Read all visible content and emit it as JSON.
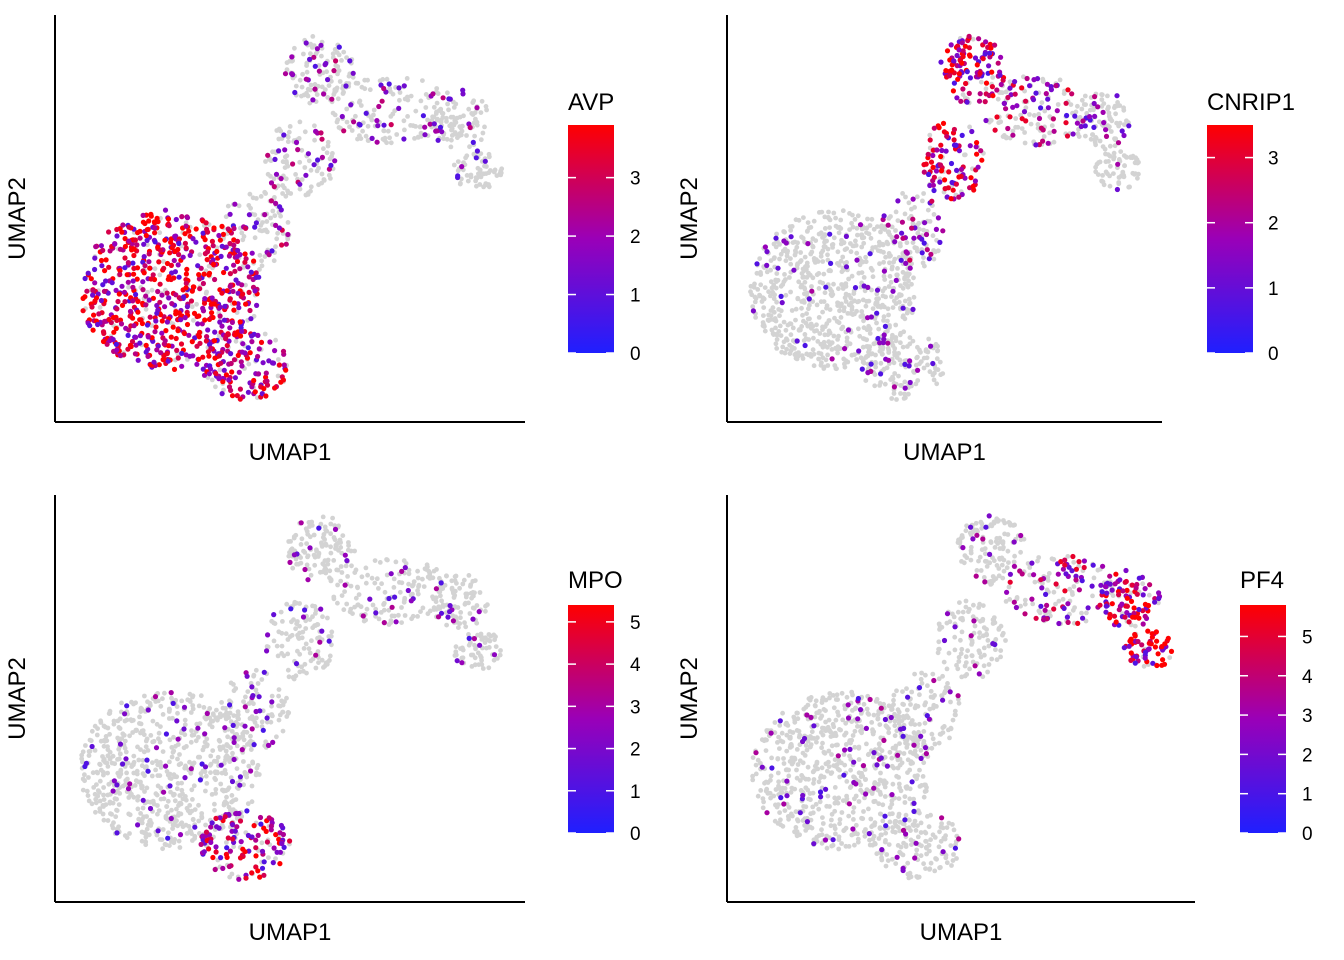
{
  "colors": {
    "background": "#ffffff",
    "axis": "#000000",
    "cell_background": "#d3d3d3",
    "gradient_low": "#1f1fff",
    "gradient_mid": "#9a00b8",
    "gradient_high": "#ff0000"
  },
  "chart_data": [
    {
      "type": "scatter",
      "title": "",
      "xlabel": "UMAP1",
      "ylabel": "UMAP2",
      "legend": {
        "title": "AVP",
        "ticks": [
          0,
          1,
          2,
          3
        ],
        "range": [
          0,
          3.9
        ],
        "placement": "right"
      },
      "high_expression_region": "lower-left lobe",
      "grid": false
    },
    {
      "type": "scatter",
      "title": "",
      "xlabel": "UMAP1",
      "ylabel": "UMAP2",
      "legend": {
        "title": "CNRIP1",
        "ticks": [
          0,
          1,
          2,
          3
        ],
        "range": [
          0,
          3.5
        ],
        "placement": "right"
      },
      "high_expression_region": "upper middle region",
      "grid": false
    },
    {
      "type": "scatter",
      "title": "",
      "xlabel": "UMAP1",
      "ylabel": "UMAP2",
      "legend": {
        "title": "MPO",
        "ticks": [
          0,
          1,
          2,
          3,
          4,
          5
        ],
        "range": [
          0,
          5.4
        ],
        "placement": "right"
      },
      "high_expression_region": "lower tip",
      "grid": false
    },
    {
      "type": "scatter",
      "title": "",
      "xlabel": "UMAP1",
      "ylabel": "UMAP2",
      "legend": {
        "title": "PF4",
        "ticks": [
          0,
          1,
          2,
          3,
          4,
          5
        ],
        "range": [
          0,
          5.8
        ],
        "placement": "right"
      },
      "high_expression_region": "upper-right lobe",
      "grid": false
    }
  ]
}
